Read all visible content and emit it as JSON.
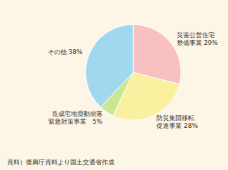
{
  "chart_data": {
    "type": "pie",
    "categories": [
      "災害公営住宅\n整備事業 29%",
      "防災集団移転\n促進事業 28%",
      "造成宅地滑動崩落\n緊急対策事業　5%",
      "その他 38%"
    ],
    "values": [
      29,
      28,
      5,
      38
    ],
    "colors": [
      "#f9c0c0",
      "#f9f0a0",
      "#c8e890",
      "#a0d8f0"
    ],
    "caption": "資料）復興庁資料より国土交通省作成"
  }
}
